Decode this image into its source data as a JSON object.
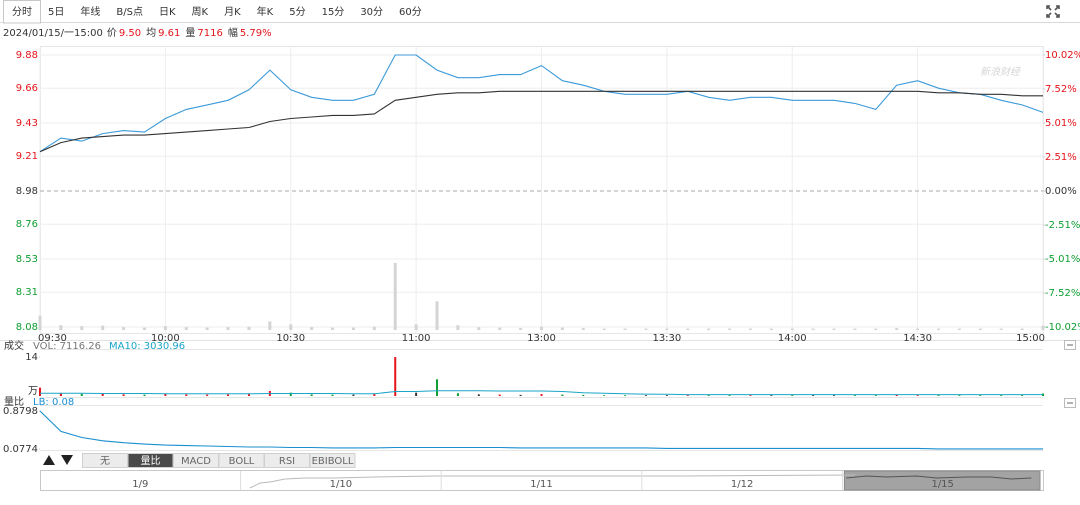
{
  "toolbar": {
    "tabs": [
      "分时",
      "5日",
      "年线",
      "B/S点",
      "日K",
      "周K",
      "月K",
      "年K",
      "5分",
      "15分",
      "30分",
      "60分"
    ],
    "active": 0
  },
  "info": {
    "datetime": "2024/01/15/一15:00",
    "items": [
      {
        "label": "价",
        "value": "9.50"
      },
      {
        "label": "均",
        "value": "9.61"
      },
      {
        "label": "量",
        "value": "7116"
      },
      {
        "label": "幅",
        "value": "5.79%"
      }
    ]
  },
  "watermark": "新浪财经",
  "chart_data": [
    {
      "type": "line",
      "categories": [
        "09:30",
        null,
        null,
        null,
        null,
        null,
        "10:00",
        null,
        null,
        null,
        null,
        null,
        "10:30",
        null,
        null,
        null,
        null,
        null,
        "11:00",
        null,
        null,
        null,
        null,
        null,
        "13:00",
        null,
        null,
        null,
        null,
        null,
        "13:30",
        null,
        null,
        null,
        null,
        null,
        "14:00",
        null,
        null,
        null,
        null,
        null,
        "14:30",
        null,
        null,
        null,
        null,
        null,
        "15:00"
      ],
      "series": [
        {
          "color": "#3b9ad9",
          "values": [
            9.24,
            9.33,
            9.31,
            9.36,
            9.38,
            9.37,
            9.46,
            9.52,
            9.55,
            9.58,
            9.65,
            9.78,
            9.65,
            9.6,
            9.58,
            9.58,
            9.62,
            9.88,
            9.88,
            9.78,
            9.73,
            9.73,
            9.75,
            9.75,
            9.81,
            9.71,
            9.68,
            9.64,
            9.62,
            9.62,
            9.62,
            9.64,
            9.6,
            9.58,
            9.6,
            9.6,
            9.58,
            9.58,
            9.58,
            9.56,
            9.52,
            9.68,
            9.71,
            9.66,
            9.63,
            9.62,
            9.58,
            9.55,
            9.5
          ]
        },
        {
          "color": "#333333",
          "values": [
            9.24,
            9.3,
            9.33,
            9.34,
            9.35,
            9.35,
            9.36,
            9.37,
            9.38,
            9.39,
            9.4,
            9.44,
            9.46,
            9.47,
            9.48,
            9.48,
            9.49,
            9.58,
            9.6,
            9.62,
            9.63,
            9.63,
            9.64,
            9.64,
            9.64,
            9.64,
            9.64,
            9.64,
            9.64,
            9.64,
            9.64,
            9.64,
            9.64,
            9.64,
            9.64,
            9.64,
            9.64,
            9.64,
            9.64,
            9.64,
            9.64,
            9.64,
            9.64,
            9.63,
            9.63,
            9.62,
            9.62,
            9.61,
            9.61
          ]
        }
      ],
      "ylim": [
        8.08,
        9.88
      ],
      "yticks": [
        9.88,
        9.66,
        9.43,
        9.21,
        8.98,
        8.76,
        8.53,
        8.31,
        8.08
      ],
      "y2lim": [
        -10.02,
        10.02
      ],
      "y2ticks": [
        {
          "value": 10.02,
          "label": "10.02%"
        },
        {
          "value": 7.52,
          "label": "7.52%"
        },
        {
          "value": 5.01,
          "label": "5.01%"
        },
        {
          "value": 2.51,
          "label": "2.51%"
        },
        {
          "value": 0,
          "label": "0.00%"
        },
        {
          "value": -2.51,
          "label": "-2.51%"
        },
        {
          "value": -5.01,
          "label": "-5.01%"
        },
        {
          "value": -7.52,
          "label": "-7.52%"
        },
        {
          "value": -10.02,
          "label": "-10.02%"
        }
      ],
      "grid": true,
      "up_color": "#e4151b",
      "down_color": "#0e9e31",
      "flat_color": "#333333"
    },
    {
      "type": "bar",
      "title": "成交",
      "series": [
        {
          "name": "VOL: 7116.26",
          "color": "#777777",
          "values": [
            3.0,
            1.0,
            0.8,
            0.9,
            0.6,
            0.5,
            0.8,
            0.6,
            0.5,
            0.6,
            0.7,
            1.8,
            1.2,
            0.6,
            0.5,
            0.5,
            0.7,
            14.0,
            1.2,
            6.0,
            1.0,
            0.6,
            0.5,
            0.4,
            0.7,
            0.5,
            0.4,
            0.3,
            0.3,
            0.3,
            0.3,
            0.3,
            0.3,
            0.3,
            0.3,
            0.3,
            0.3,
            0.3,
            0.3,
            0.3,
            0.3,
            0.4,
            0.3,
            0.3,
            0.3,
            0.3,
            0.3,
            0.3,
            0.9
          ]
        },
        {
          "name": "MA10: 3030.96",
          "color": "#1aa6c8",
          "values": [
            1.0,
            1.0,
            1.0,
            0.9,
            0.9,
            0.9,
            0.8,
            0.8,
            0.8,
            0.8,
            0.8,
            0.9,
            0.9,
            0.9,
            0.9,
            0.8,
            0.8,
            1.6,
            1.6,
            1.9,
            1.9,
            1.9,
            1.8,
            1.8,
            1.8,
            1.6,
            1.2,
            1.0,
            0.8,
            0.7,
            0.6,
            0.5,
            0.5,
            0.5,
            0.5,
            0.5,
            0.5,
            0.5,
            0.5,
            0.5,
            0.5,
            0.5,
            0.5,
            0.5,
            0.5,
            0.5,
            0.5,
            0.5,
            0.5
          ]
        }
      ],
      "ylim": [
        0,
        14
      ],
      "yticks": [
        14
      ],
      "unit": "万",
      "overlay_color": "#d4d4d4"
    },
    {
      "type": "line",
      "title": "量比",
      "series": [
        {
          "name": "LB: 0.08",
          "color": "#1a8fd0",
          "values": [
            0.8798,
            0.45,
            0.32,
            0.25,
            0.21,
            0.18,
            0.16,
            0.15,
            0.14,
            0.13,
            0.12,
            0.12,
            0.11,
            0.11,
            0.1,
            0.1,
            0.1,
            0.11,
            0.11,
            0.11,
            0.11,
            0.11,
            0.11,
            0.1,
            0.1,
            0.1,
            0.1,
            0.1,
            0.1,
            0.1,
            0.09,
            0.09,
            0.09,
            0.09,
            0.09,
            0.09,
            0.09,
            0.09,
            0.09,
            0.09,
            0.09,
            0.09,
            0.09,
            0.08,
            0.08,
            0.08,
            0.08,
            0.08,
            0.08
          ]
        }
      ],
      "ylim": [
        0.0774,
        0.8798
      ],
      "yticks": [
        0.8798,
        0.0774
      ]
    }
  ],
  "indicator_tabs": {
    "tabs": [
      "无",
      "量比",
      "MACD",
      "BOLL",
      "RSI",
      "EBIBOLL"
    ],
    "active": 1
  },
  "navigator": {
    "dates": [
      "1/9",
      "1/10",
      "1/11",
      "1/12",
      "1/15"
    ],
    "active": 4
  }
}
